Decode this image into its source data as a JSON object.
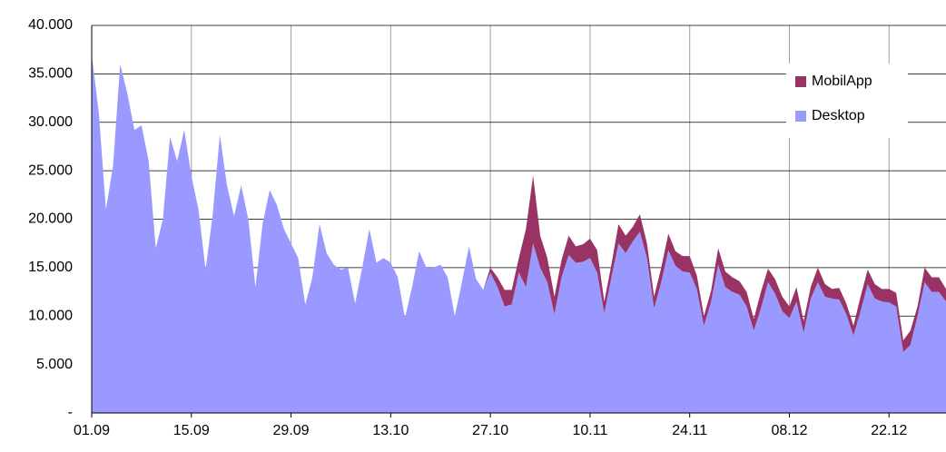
{
  "chart_data": {
    "type": "stacked-area",
    "categories": [
      "01.09",
      null,
      null,
      null,
      null,
      null,
      null,
      null,
      null,
      null,
      null,
      null,
      null,
      null,
      "15.09",
      null,
      null,
      null,
      null,
      null,
      null,
      null,
      null,
      null,
      null,
      null,
      null,
      null,
      "29.09",
      null,
      null,
      null,
      null,
      null,
      null,
      null,
      null,
      null,
      null,
      null,
      null,
      null,
      "13.10",
      null,
      null,
      null,
      null,
      null,
      null,
      null,
      null,
      null,
      null,
      null,
      null,
      null,
      "27.10",
      null,
      null,
      null,
      null,
      null,
      null,
      null,
      null,
      null,
      null,
      null,
      null,
      null,
      "10.11",
      null,
      null,
      null,
      null,
      null,
      null,
      null,
      null,
      null,
      null,
      null,
      null,
      null,
      "24.11",
      null,
      null,
      null,
      null,
      null,
      null,
      null,
      null,
      null,
      null,
      null,
      null,
      null,
      "08.12",
      null,
      null,
      null,
      null,
      null,
      null,
      null,
      null,
      null,
      null,
      null,
      null,
      null,
      "22.12",
      null,
      null,
      null,
      null,
      null,
      null,
      null,
      null
    ],
    "series": [
      {
        "name": "Desktop",
        "color": "#9999ff",
        "values": [
          37000,
          31000,
          21000,
          25500,
          36000,
          33000,
          29200,
          29700,
          26000,
          17000,
          20000,
          28500,
          26000,
          29200,
          24500,
          21000,
          14800,
          20500,
          28700,
          23500,
          20300,
          23500,
          20000,
          13000,
          19500,
          23000,
          21500,
          19000,
          17500,
          16000,
          11200,
          14000,
          19500,
          16500,
          15300,
          14800,
          15000,
          11300,
          15000,
          19000,
          15500,
          16000,
          15500,
          14000,
          9800,
          13000,
          16700,
          15000,
          15000,
          15300,
          14000,
          10000,
          13500,
          17200,
          13800,
          12700,
          14500,
          13000,
          11000,
          11200,
          14500,
          13000,
          17500,
          15000,
          13500,
          10200,
          14000,
          16300,
          15500,
          15600,
          16000,
          14500,
          10300,
          14000,
          17500,
          16500,
          17700,
          18700,
          16000,
          10800,
          13500,
          16800,
          15200,
          14600,
          14500,
          12800,
          9000,
          11500,
          15300,
          13000,
          12500,
          12200,
          11000,
          8500,
          10800,
          13500,
          12300,
          10500,
          9800,
          11500,
          8300,
          11800,
          13500,
          12000,
          11800,
          11700,
          10200,
          8000,
          10500,
          13300,
          11800,
          11500,
          11400,
          11000,
          6300,
          7000,
          10000,
          13500,
          12500,
          12500,
          11500
        ]
      },
      {
        "name": "MobilApp",
        "color": "#993366",
        "values": [
          0,
          0,
          0,
          0,
          0,
          0,
          0,
          0,
          0,
          0,
          0,
          0,
          0,
          0,
          0,
          0,
          0,
          0,
          0,
          0,
          0,
          0,
          0,
          0,
          0,
          0,
          0,
          0,
          0,
          0,
          0,
          0,
          0,
          0,
          0,
          0,
          0,
          0,
          0,
          0,
          0,
          0,
          0,
          0,
          0,
          0,
          0,
          0,
          0,
          0,
          0,
          0,
          0,
          0,
          0,
          0,
          500,
          1000,
          1700,
          1500,
          1500,
          6000,
          7000,
          3300,
          2500,
          1800,
          1800,
          2000,
          1700,
          1800,
          2000,
          2300,
          1200,
          1300,
          2000,
          1800,
          1500,
          1800,
          1500,
          1200,
          1500,
          1700,
          1500,
          1600,
          1700,
          1400,
          1000,
          1100,
          1700,
          1600,
          1500,
          1400,
          1500,
          1200,
          1700,
          1400,
          1500,
          1500,
          1200,
          1500,
          1200,
          1200,
          1500,
          1300,
          1000,
          1200,
          1100,
          1000,
          1500,
          1500,
          1500,
          1300,
          1400,
          1400,
          1200,
          1500,
          1000,
          1500,
          1500,
          1500,
          1300
        ]
      }
    ],
    "ylim": [
      0,
      40000
    ],
    "yticks": [
      {
        "value": 0,
        "label": "-"
      },
      {
        "value": 5000,
        "label": "5.000"
      },
      {
        "value": 10000,
        "label": "10.000"
      },
      {
        "value": 15000,
        "label": "15.000"
      },
      {
        "value": 20000,
        "label": "20.000"
      },
      {
        "value": 25000,
        "label": "25.000"
      },
      {
        "value": 30000,
        "label": "30.000"
      },
      {
        "value": 35000,
        "label": "35.000"
      },
      {
        "value": 40000,
        "label": "40.000"
      }
    ],
    "grid": true,
    "legend": "upper right"
  }
}
